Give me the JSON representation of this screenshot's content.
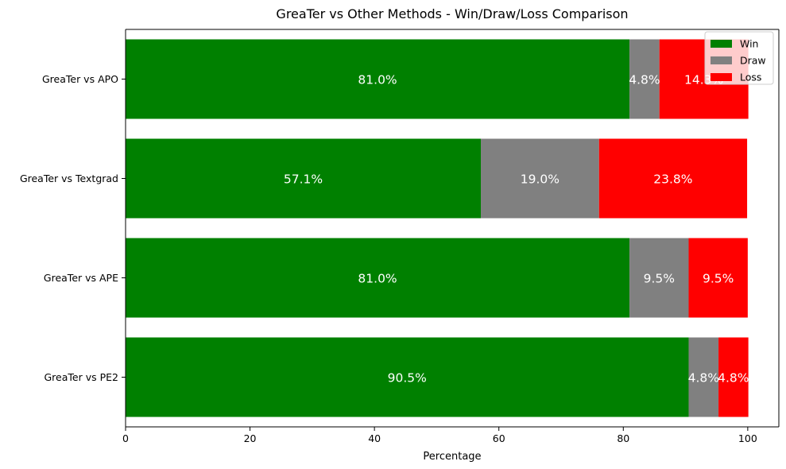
{
  "chart_data": {
    "type": "bar",
    "orientation": "horizontal",
    "stacked": true,
    "title": "GreaTer vs Other Methods - Win/Draw/Loss Comparison",
    "xlabel": "Percentage",
    "ylabel": "",
    "xlim": [
      0,
      105
    ],
    "x_ticks": [
      0,
      20,
      40,
      60,
      80,
      100
    ],
    "grid": false,
    "legend_position": "top-right",
    "categories": [
      "GreaTer vs APO",
      "GreaTer vs Textgrad",
      "GreaTer vs APE",
      "GreaTer vs PE2"
    ],
    "series": [
      {
        "name": "Win",
        "color": "#008000",
        "values": [
          81.0,
          57.1,
          81.0,
          90.5
        ],
        "labels": [
          "81.0%",
          "57.1%",
          "81.0%",
          "90.5%"
        ]
      },
      {
        "name": "Draw",
        "color": "#808080",
        "values": [
          4.8,
          19.0,
          9.5,
          4.8
        ],
        "labels": [
          "4.8%",
          "19.0%",
          "9.5%",
          "4.8%"
        ]
      },
      {
        "name": "Loss",
        "color": "#ff0000",
        "values": [
          14.3,
          23.8,
          9.5,
          4.8
        ],
        "labels": [
          "14.3%",
          "23.8%",
          "9.5%",
          "4.8%"
        ]
      }
    ]
  }
}
